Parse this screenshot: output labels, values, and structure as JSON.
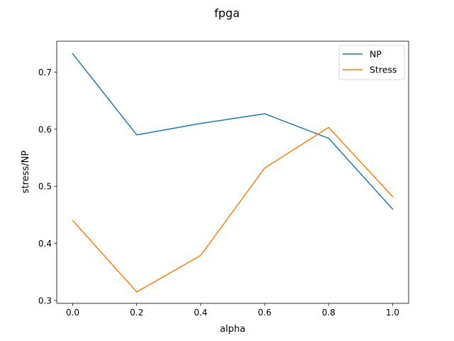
{
  "chart_data": {
    "type": "line",
    "title": "fpga",
    "xlabel": "alpha",
    "ylabel": "stress/NP",
    "x": [
      0.0,
      0.2,
      0.4,
      0.6,
      0.8,
      1.0
    ],
    "xlim": [
      -0.05,
      1.05
    ],
    "ylim": [
      0.295,
      0.754
    ],
    "xticks": [
      0.0,
      0.2,
      0.4,
      0.6,
      0.8,
      1.0
    ],
    "xtick_labels": [
      "0.0",
      "0.2",
      "0.4",
      "0.6",
      "0.8",
      "1.0"
    ],
    "yticks": [
      0.3,
      0.4,
      0.5,
      0.6,
      0.7
    ],
    "ytick_labels": [
      "0.3",
      "0.4",
      "0.5",
      "0.6",
      "0.7"
    ],
    "grid": false,
    "legend_position": "top-right",
    "series": [
      {
        "name": "NP",
        "color": "#1f77b4",
        "values": [
          0.732,
          0.59,
          0.61,
          0.627,
          0.584,
          0.46
        ]
      },
      {
        "name": "Stress",
        "color": "#ff7f0e",
        "values": [
          0.44,
          0.315,
          0.379,
          0.532,
          0.603,
          0.482
        ]
      }
    ]
  }
}
